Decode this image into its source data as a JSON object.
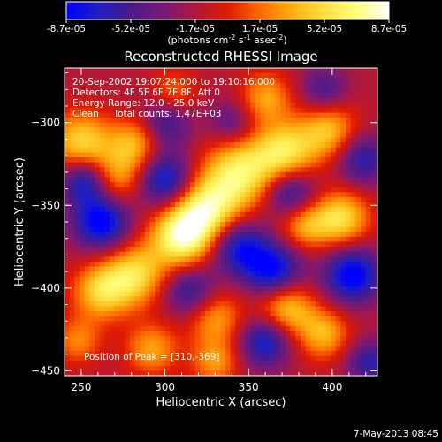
{
  "chart_data": {
    "type": "heatmap",
    "title": "Reconstructed RHESSI Image",
    "xlabel": "Heliocentric X (arcsec)",
    "ylabel": "Heliocentric Y (arcsec)",
    "xlim": [
      240,
      427
    ],
    "ylim": [
      -453,
      -267
    ],
    "x_ticks": [
      250,
      300,
      350,
      400
    ],
    "y_ticks": [
      -300,
      -350,
      -400,
      -450
    ],
    "colorbar": {
      "range": [
        -8.7e-05,
        8.7e-05
      ],
      "tick_labels": [
        "-8.7e-05",
        "-5.2e-05",
        "-1.7e-05",
        "1.7e-05",
        "5.2e-05",
        "8.7e-05"
      ],
      "unit_main": "(photons cm",
      "unit_exp1": "-2",
      "unit_mid": " s",
      "unit_exp2": "-1",
      "unit_tail": " asec",
      "unit_exp3": "-2",
      "unit_close": ")",
      "colors": [
        "#0000ff",
        "#2020c0",
        "#4a1a88",
        "#781a78",
        "#b0183a",
        "#e01a00",
        "#ff6a00",
        "#ffb010",
        "#ffe040",
        "#ffff80",
        "#ffffff"
      ]
    },
    "annotations": [
      "20-Sep-2002 19:07:24.000 to 19:10:16.000",
      "Detectors: 4F 5F 6F 7F 8F, Att 0",
      "Energy Range: 12.0 - 25.0 keV",
      "Clean     Total counts: 1.47E+03"
    ],
    "peak_label": "Position of Peak = [310,-369]",
    "peak": [
      310,
      -369
    ],
    "sources": [
      {
        "x": 310,
        "y": -369,
        "v": 1.0,
        "s": 13
      },
      {
        "x": 325,
        "y": -352,
        "v": 0.9,
        "s": 14
      },
      {
        "x": 345,
        "y": -330,
        "v": 0.85,
        "s": 15
      },
      {
        "x": 372,
        "y": -318,
        "v": 0.8,
        "s": 13
      },
      {
        "x": 398,
        "y": -305,
        "v": 0.65,
        "s": 12
      },
      {
        "x": 282,
        "y": -392,
        "v": 0.75,
        "s": 13
      },
      {
        "x": 262,
        "y": -402,
        "v": 0.7,
        "s": 12
      },
      {
        "x": 250,
        "y": -312,
        "v": 0.75,
        "s": 13
      },
      {
        "x": 283,
        "y": -312,
        "v": 0.6,
        "s": 11
      },
      {
        "x": 272,
        "y": -333,
        "v": 0.55,
        "s": 12
      },
      {
        "x": 405,
        "y": -358,
        "v": 0.8,
        "s": 12
      },
      {
        "x": 383,
        "y": -362,
        "v": 0.55,
        "s": 10
      },
      {
        "x": 372,
        "y": -412,
        "v": 0.75,
        "s": 12
      },
      {
        "x": 395,
        "y": -428,
        "v": 0.6,
        "s": 11
      },
      {
        "x": 330,
        "y": -418,
        "v": 0.55,
        "s": 12
      },
      {
        "x": 292,
        "y": -437,
        "v": 0.55,
        "s": 11
      },
      {
        "x": 330,
        "y": -445,
        "v": 0.5,
        "s": 10
      },
      {
        "x": 248,
        "y": -432,
        "v": 0.45,
        "s": 10
      },
      {
        "x": 360,
        "y": -285,
        "v": 0.55,
        "s": 11
      },
      {
        "x": 305,
        "y": -282,
        "v": 0.4,
        "s": 10
      },
      {
        "x": 262,
        "y": -360,
        "v": -0.9,
        "s": 12
      },
      {
        "x": 300,
        "y": -335,
        "v": -0.8,
        "s": 12
      },
      {
        "x": 252,
        "y": -335,
        "v": -0.75,
        "s": 10
      },
      {
        "x": 344,
        "y": -375,
        "v": -0.75,
        "s": 12
      },
      {
        "x": 365,
        "y": -390,
        "v": -0.85,
        "s": 12
      },
      {
        "x": 412,
        "y": -392,
        "v": -0.9,
        "s": 12
      },
      {
        "x": 375,
        "y": -342,
        "v": -0.65,
        "s": 11
      },
      {
        "x": 315,
        "y": -402,
        "v": -0.6,
        "s": 11
      },
      {
        "x": 300,
        "y": -300,
        "v": -0.55,
        "s": 11
      },
      {
        "x": 418,
        "y": -322,
        "v": -0.6,
        "s": 11
      },
      {
        "x": 340,
        "y": -300,
        "v": -0.4,
        "s": 10
      },
      {
        "x": 360,
        "y": -432,
        "v": -0.75,
        "s": 11
      },
      {
        "x": 422,
        "y": -445,
        "v": -0.55,
        "s": 10
      },
      {
        "x": 395,
        "y": -280,
        "v": -0.45,
        "s": 10
      }
    ]
  },
  "footer": {
    "timestamp": "7-May-2013 08:45"
  }
}
